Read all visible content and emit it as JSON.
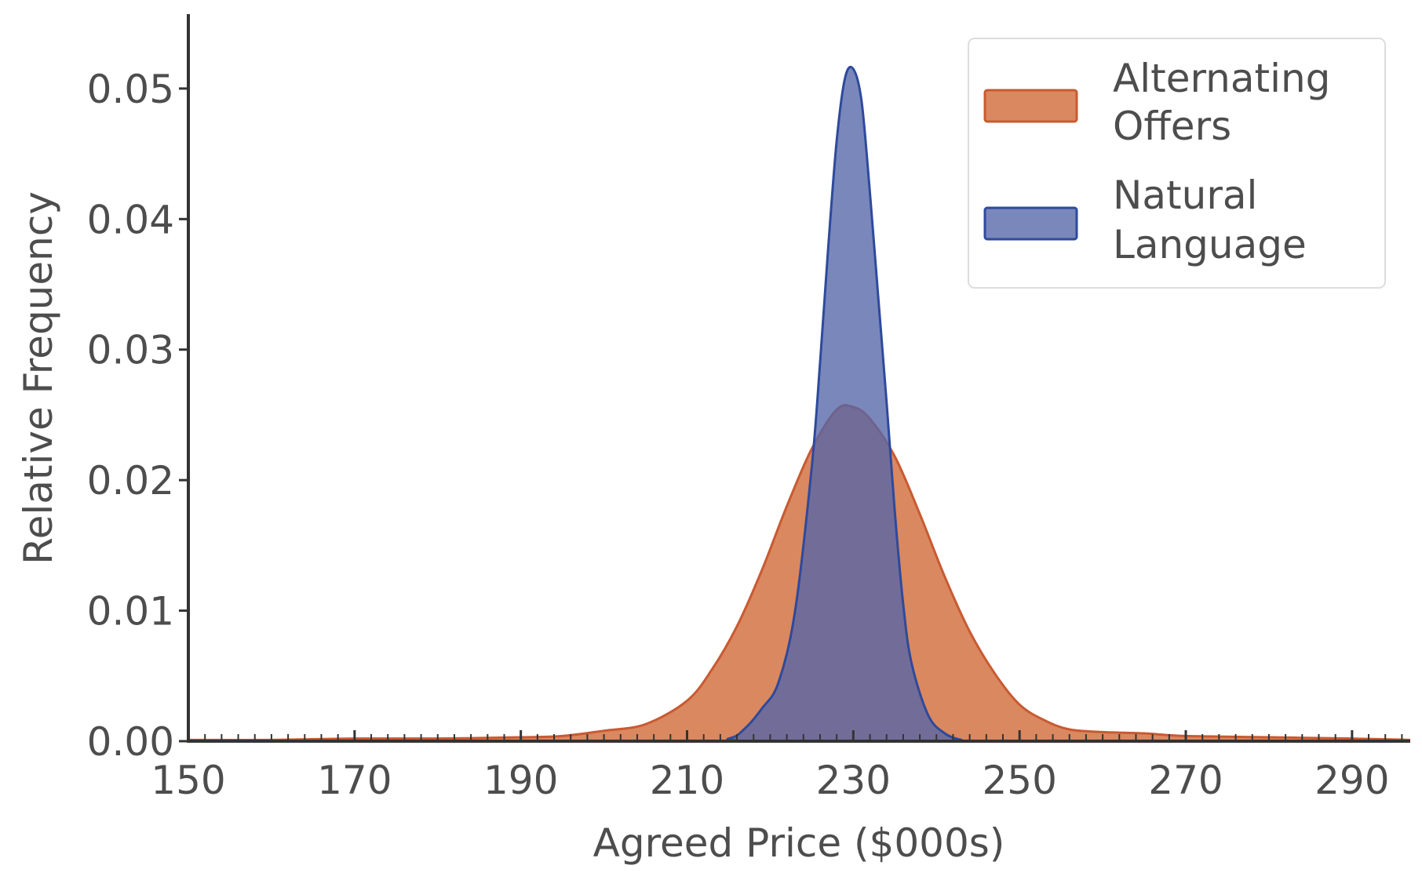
{
  "chart_data": {
    "type": "area",
    "title": "",
    "xlabel": "Agreed Price ($000s)",
    "ylabel": "Relative Frequency",
    "xlim": [
      150,
      297
    ],
    "ylim": [
      0,
      0.0545
    ],
    "x_ticks": [
      "150",
      "170",
      "190",
      "210",
      "230",
      "250",
      "270",
      "290"
    ],
    "y_ticks": [
      "0.00",
      "0.01",
      "0.02",
      "0.03",
      "0.04",
      "0.05"
    ],
    "grid": false,
    "legend_position": "top-right",
    "series": [
      {
        "name": "Alternating Offers",
        "line_color": "#c85a32",
        "fill_color": "#d67b4e",
        "x": [
          150,
          160,
          170,
          180,
          190,
          195,
          200,
          205,
          210,
          213,
          216,
          219,
          222,
          225,
          228,
          230,
          232,
          235,
          238,
          241,
          244,
          247,
          250,
          253,
          256,
          260,
          265,
          270,
          280,
          290,
          297
        ],
        "y": [
          0.0001,
          0.0001,
          0.0002,
          0.0002,
          0.0003,
          0.0004,
          0.0008,
          0.0013,
          0.0031,
          0.0055,
          0.0088,
          0.0131,
          0.018,
          0.0224,
          0.0254,
          0.0256,
          0.0247,
          0.0218,
          0.0174,
          0.0126,
          0.0084,
          0.0052,
          0.0028,
          0.0016,
          0.0009,
          0.0007,
          0.0006,
          0.0004,
          0.0003,
          0.0002,
          0.0001
        ]
      },
      {
        "name": "Natural Language",
        "line_color": "#2e4a9c",
        "fill_color": "#5565a8",
        "x": [
          150,
          210,
          215,
          217,
          219,
          221,
          223,
          225,
          226,
          227,
          228,
          229,
          230,
          231,
          232,
          233,
          234,
          235,
          236,
          237,
          239,
          241,
          243,
          245,
          297
        ],
        "y": [
          0,
          0,
          0.0002,
          0.001,
          0.0025,
          0.0045,
          0.01,
          0.021,
          0.029,
          0.038,
          0.046,
          0.0508,
          0.0515,
          0.049,
          0.042,
          0.034,
          0.026,
          0.0175,
          0.0105,
          0.006,
          0.002,
          0.0006,
          0.0001,
          0,
          0
        ]
      }
    ]
  }
}
